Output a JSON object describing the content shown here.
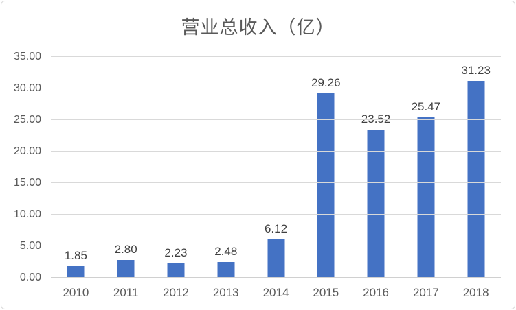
{
  "chart_data": {
    "type": "bar",
    "title": "营业总收入（亿）",
    "categories": [
      "2010",
      "2011",
      "2012",
      "2013",
      "2014",
      "2015",
      "2016",
      "2017",
      "2018"
    ],
    "values": [
      1.85,
      2.8,
      2.23,
      2.48,
      6.12,
      29.26,
      23.52,
      25.47,
      31.23
    ],
    "value_labels": [
      "1.85",
      "2.80",
      "2.23",
      "2.48",
      "6.12",
      "29.26",
      "23.52",
      "25.47",
      "31.23"
    ],
    "xlabel": "",
    "ylabel": "",
    "ylim": [
      0,
      35
    ],
    "ytick_step": 5,
    "ytick_labels": [
      "0.00",
      "5.00",
      "10.00",
      "15.00",
      "20.00",
      "25.00",
      "30.00",
      "35.00"
    ],
    "grid": true,
    "legend": false,
    "colors": {
      "bar": "#4472c4",
      "gridline": "#d9d9d9",
      "axis_line": "#d0d0d0",
      "title_text": "#595959",
      "tick_text": "#595959",
      "value_text": "#404040",
      "background": "#ffffff",
      "card_border": "#d8d8d8"
    }
  }
}
